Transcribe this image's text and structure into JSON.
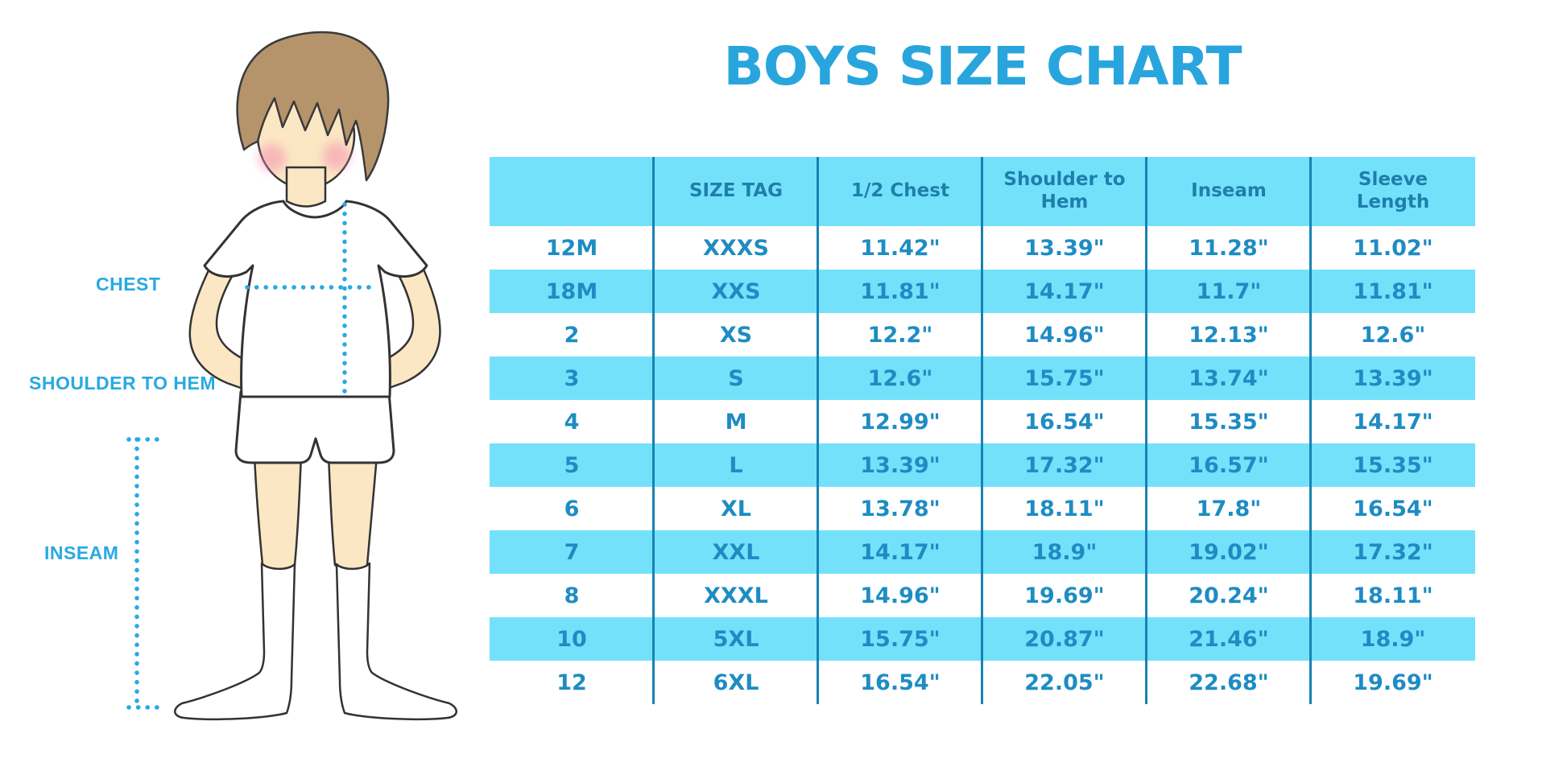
{
  "title": "BOYS SIZE CHART",
  "figure_labels": {
    "chest": "CHEST",
    "shoulder_to_hem": "SHOULDER TO HEM",
    "inseam": "INSEAM"
  },
  "colors": {
    "accent_blue": "#29A9E1",
    "title_blue": "#29A5DE",
    "row_fill_blue": "#74E1FB",
    "column_line_blue": "#1782B3",
    "cell_text_blue": "#1E8CC3",
    "header_text_blue": "#1E7FAB",
    "hair_brown": "#B5946B",
    "skin": "#FBE7C4",
    "cheek_pink": "#F48FB1"
  },
  "chart_data": {
    "type": "table",
    "title": "BOYS SIZE CHART",
    "columns": [
      "",
      "SIZE TAG",
      "1/2 Chest",
      "Shoulder to Hem",
      "Inseam",
      "Sleeve Length"
    ],
    "rows": [
      [
        "12M",
        "XXXS",
        "11.42\"",
        "13.39\"",
        "11.28\"",
        "11.02\""
      ],
      [
        "18M",
        "XXS",
        "11.81\"",
        "14.17\"",
        "11.7\"",
        "11.81\""
      ],
      [
        "2",
        "XS",
        "12.2\"",
        "14.96\"",
        "12.13\"",
        "12.6\""
      ],
      [
        "3",
        "S",
        "12.6\"",
        "15.75\"",
        "13.74\"",
        "13.39\""
      ],
      [
        "4",
        "M",
        "12.99\"",
        "16.54\"",
        "15.35\"",
        "14.17\""
      ],
      [
        "5",
        "L",
        "13.39\"",
        "17.32\"",
        "16.57\"",
        "15.35\""
      ],
      [
        "6",
        "XL",
        "13.78\"",
        "18.11\"",
        "17.8\"",
        "16.54\""
      ],
      [
        "7",
        "XXL",
        "14.17\"",
        "18.9\"",
        "19.02\"",
        "17.32\""
      ],
      [
        "8",
        "XXXL",
        "14.96\"",
        "19.69\"",
        "20.24\"",
        "18.11\""
      ],
      [
        "10",
        "5XL",
        "15.75\"",
        "20.87\"",
        "21.46\"",
        "18.9\""
      ],
      [
        "12",
        "6XL",
        "16.54\"",
        "22.05\"",
        "22.68\"",
        "19.69\""
      ]
    ],
    "row_striping": [
      "white",
      "blue",
      "white",
      "blue",
      "white",
      "blue",
      "white",
      "blue",
      "white",
      "blue",
      "white"
    ]
  }
}
